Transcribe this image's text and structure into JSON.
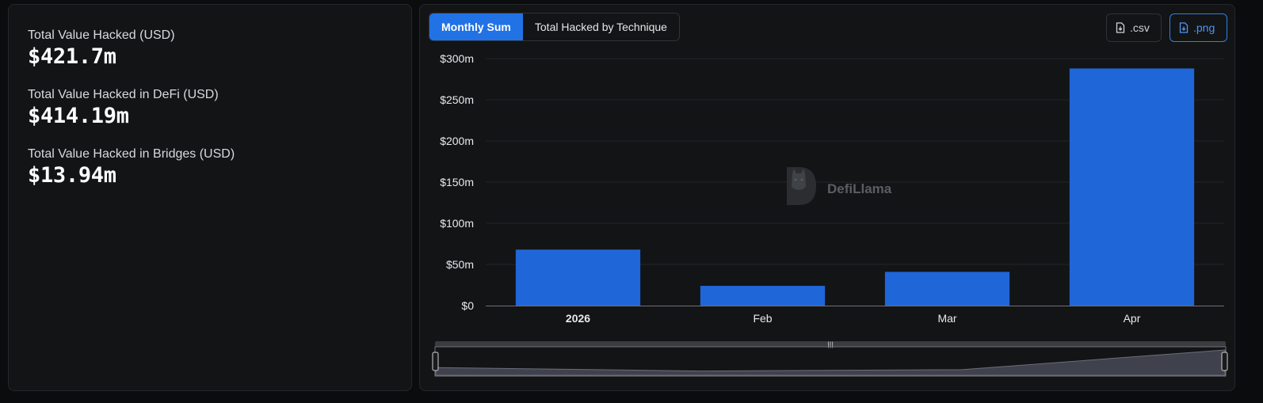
{
  "stats": [
    {
      "label": "Total Value Hacked (USD)",
      "value": "$421.7m"
    },
    {
      "label": "Total Value Hacked in DeFi (USD)",
      "value": "$414.19m"
    },
    {
      "label": "Total Value Hacked in Bridges (USD)",
      "value": "$13.94m"
    }
  ],
  "tabs": [
    {
      "label": "Monthly Sum",
      "active": true
    },
    {
      "label": "Total Hacked by Technique",
      "active": false
    }
  ],
  "downloads": {
    "csv_label": ".csv",
    "png_label": ".png"
  },
  "watermark": "DefiLlama",
  "colors": {
    "accent": "#2172e5",
    "bar": "#1f66d8",
    "background": "#131416"
  },
  "icons": {
    "download": "file-download-icon",
    "watermark": "llama-logo-icon"
  },
  "chart_data": {
    "type": "bar",
    "categories": [
      "2026",
      "Feb",
      "Mar",
      "Apr"
    ],
    "values": [
      68,
      24,
      41,
      288
    ],
    "unit": "m USD",
    "ylim": [
      0,
      300
    ],
    "yticks": [
      "$0",
      "$50m",
      "$100m",
      "$150m",
      "$200m",
      "$250m",
      "$300m"
    ],
    "grid": true,
    "legend": "none",
    "overview_brush": true
  }
}
